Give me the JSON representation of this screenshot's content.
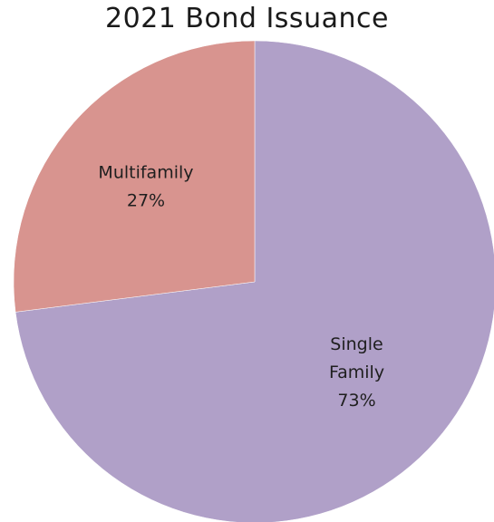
{
  "chart_data": {
    "type": "pie",
    "title": "2021 Bond Issuance",
    "slices": [
      {
        "name": "Single Family",
        "label_lines": [
          "Single",
          "Family",
          "73%"
        ],
        "value": 73,
        "color": "#b0a0c8"
      },
      {
        "name": "Multifamily",
        "label_lines": [
          "Multifamily",
          "27%"
        ],
        "value": 27,
        "color": "#d8948f"
      }
    ],
    "start_angle_deg": 0,
    "direction": "clockwise",
    "legend": "none",
    "labels_inside": true
  }
}
